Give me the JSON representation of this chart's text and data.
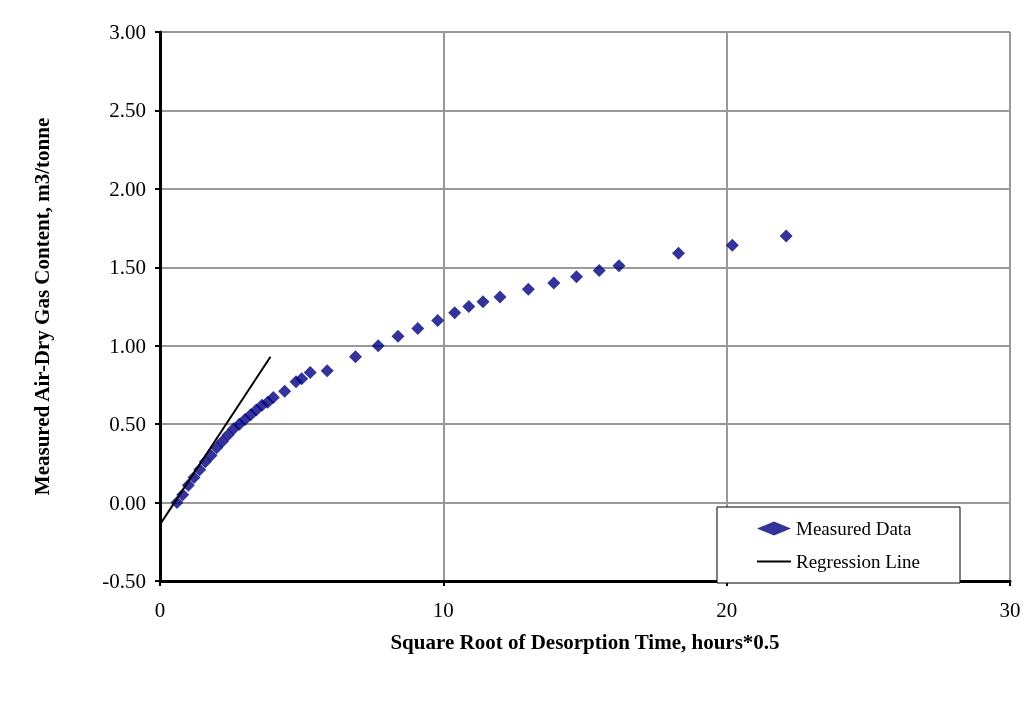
{
  "chart_data": {
    "type": "scatter",
    "xlabel": "Square Root of Desorption Time, hours*0.5",
    "ylabel": "Measured Air-Dry Gas Content, m3/tonne",
    "series": [
      {
        "name": "Measured Data",
        "color": "#000080",
        "marker": "diamond",
        "x": [
          0.6,
          0.8,
          1.0,
          1.2,
          1.4,
          1.6,
          1.8,
          2.0,
          2.2,
          2.4,
          2.6,
          2.8,
          3.0,
          3.2,
          3.4,
          3.6,
          3.8,
          4.0,
          4.4,
          4.8,
          5.0,
          5.3,
          5.9,
          6.9,
          7.7,
          8.4,
          9.1,
          9.8,
          10.4,
          10.9,
          11.4,
          12.0,
          13.0,
          13.9,
          14.7,
          15.5,
          16.2,
          18.3,
          20.2,
          22.1
        ],
        "values": [
          0.0,
          0.05,
          0.11,
          0.16,
          0.21,
          0.26,
          0.3,
          0.35,
          0.39,
          0.43,
          0.47,
          0.5,
          0.53,
          0.56,
          0.59,
          0.62,
          0.64,
          0.67,
          0.71,
          0.77,
          0.79,
          0.83,
          0.84,
          0.93,
          1.0,
          1.06,
          1.11,
          1.16,
          1.21,
          1.25,
          1.28,
          1.31,
          1.36,
          1.4,
          1.44,
          1.48,
          1.51,
          1.59,
          1.64,
          1.7
        ]
      },
      {
        "name": "Regression Line",
        "type": "line",
        "color": "#000000",
        "marker": "none",
        "line_style": "solid",
        "x": [
          0,
          3.9
        ],
        "values": [
          -0.14,
          0.93
        ]
      }
    ],
    "xlim": [
      0,
      30
    ],
    "xticks": [
      0,
      10,
      20,
      30
    ],
    "ylim": [
      -0.5,
      3
    ],
    "yticks": [
      {
        "value": -0.5,
        "label": "-0.50"
      },
      {
        "value": 0,
        "label": "0.00"
      },
      {
        "value": 0.5,
        "label": "0.50"
      },
      {
        "value": 1,
        "label": "1.00"
      },
      {
        "value": 1.5,
        "label": "1.50"
      },
      {
        "value": 2,
        "label": "2.00"
      },
      {
        "value": 2.5,
        "label": "2.50"
      },
      {
        "value": 3,
        "label": "3.00"
      }
    ],
    "grid": true,
    "legend": "bottom right"
  }
}
